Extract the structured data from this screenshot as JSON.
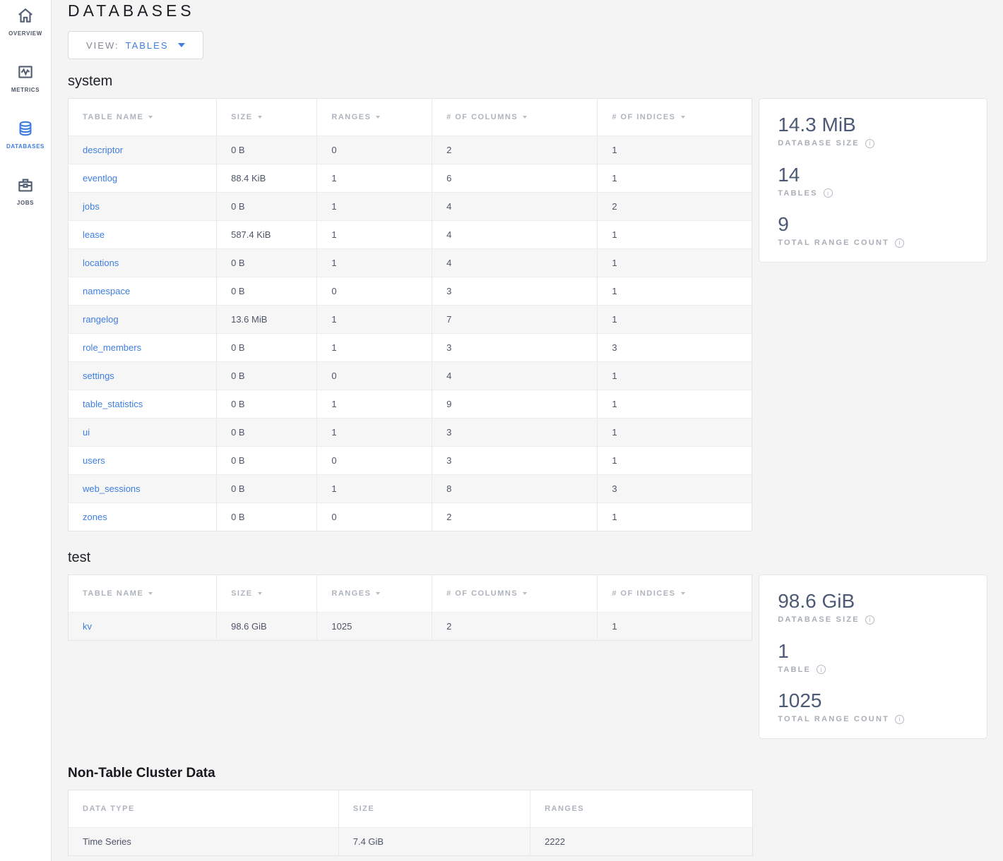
{
  "colors": {
    "accent": "#3f7de0",
    "slate": "#4d5a75",
    "background": "#f4f4f5"
  },
  "sidebar": {
    "items": [
      {
        "label": "OVERVIEW",
        "icon": "home-icon",
        "active": false
      },
      {
        "label": "METRICS",
        "icon": "metrics-graph-icon",
        "active": false
      },
      {
        "label": "DATABASES",
        "icon": "database-cylinder-icon",
        "active": true
      },
      {
        "label": "JOBS",
        "icon": "briefcase-icon",
        "active": false
      }
    ]
  },
  "page": {
    "title": "DATABASES",
    "view_label": "VIEW:",
    "view_value": "TABLES"
  },
  "sections": {
    "system": {
      "heading": "system",
      "sortable": true,
      "link_first_col": true,
      "columns": [
        "TABLE NAME",
        "SIZE",
        "RANGES",
        "# OF COLUMNS",
        "# OF INDICES"
      ],
      "rows": [
        [
          "descriptor",
          "0 B",
          "0",
          "2",
          "1"
        ],
        [
          "eventlog",
          "88.4 KiB",
          "1",
          "6",
          "1"
        ],
        [
          "jobs",
          "0 B",
          "1",
          "4",
          "2"
        ],
        [
          "lease",
          "587.4 KiB",
          "1",
          "4",
          "1"
        ],
        [
          "locations",
          "0 B",
          "1",
          "4",
          "1"
        ],
        [
          "namespace",
          "0 B",
          "0",
          "3",
          "1"
        ],
        [
          "rangelog",
          "13.6 MiB",
          "1",
          "7",
          "1"
        ],
        [
          "role_members",
          "0 B",
          "1",
          "3",
          "3"
        ],
        [
          "settings",
          "0 B",
          "0",
          "4",
          "1"
        ],
        [
          "table_statistics",
          "0 B",
          "1",
          "9",
          "1"
        ],
        [
          "ui",
          "0 B",
          "1",
          "3",
          "1"
        ],
        [
          "users",
          "0 B",
          "0",
          "3",
          "1"
        ],
        [
          "web_sessions",
          "0 B",
          "1",
          "8",
          "3"
        ],
        [
          "zones",
          "0 B",
          "0",
          "2",
          "1"
        ]
      ],
      "summary": {
        "stats": [
          {
            "value": "14.3 MiB",
            "label": "DATABASE SIZE"
          },
          {
            "value": "14",
            "label": "TABLES"
          },
          {
            "value": "9",
            "label": "TOTAL RANGE COUNT"
          }
        ]
      }
    },
    "test": {
      "heading": "test",
      "sortable": true,
      "link_first_col": true,
      "columns": [
        "TABLE NAME",
        "SIZE",
        "RANGES",
        "# OF COLUMNS",
        "# OF INDICES"
      ],
      "rows": [
        [
          "kv",
          "98.6 GiB",
          "1025",
          "2",
          "1"
        ]
      ],
      "summary": {
        "stats": [
          {
            "value": "98.6 GiB",
            "label": "DATABASE SIZE"
          },
          {
            "value": "1",
            "label": "TABLE"
          },
          {
            "value": "1025",
            "label": "TOTAL RANGE COUNT"
          }
        ]
      }
    },
    "non_table": {
      "heading": "Non-Table Cluster Data",
      "sortable": false,
      "link_first_col": false,
      "columns": [
        "DATA TYPE",
        "SIZE",
        "RANGES"
      ],
      "rows": [
        [
          "Time Series",
          "7.4 GiB",
          "2222"
        ]
      ]
    }
  }
}
